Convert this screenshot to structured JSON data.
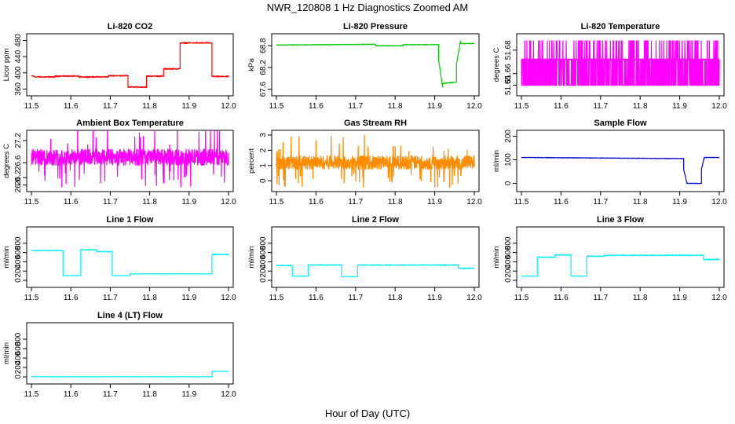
{
  "figure": {
    "title": "NWR_120808  1 Hz Diagnostics Zoomed AM",
    "xlabel": "Hour of Day (UTC)"
  },
  "chart_data": [
    {
      "type": "line",
      "title": "Li-820 CO2",
      "ylabel": "Licor ppm",
      "color": "#ff0000",
      "xlim": [
        11.5,
        12.0
      ],
      "ylim": [
        355,
        485
      ],
      "x_ticks": [
        11.5,
        11.6,
        11.7,
        11.8,
        11.9,
        12.0
      ],
      "y_ticks": [
        360,
        400,
        440,
        480
      ],
      "segments": [
        {
          "x": [
            11.5,
            11.507
          ],
          "y": [
            392,
            392
          ],
          "noise": 2
        },
        {
          "x": [
            11.507,
            11.56
          ],
          "y": [
            390,
            390
          ],
          "noise": 2
        },
        {
          "x": [
            11.56,
            11.62
          ],
          "y": [
            392,
            392
          ],
          "noise": 2
        },
        {
          "x": [
            11.62,
            11.695
          ],
          "y": [
            390,
            390
          ],
          "noise": 2
        },
        {
          "x": [
            11.695,
            11.745
          ],
          "y": [
            393,
            393
          ],
          "noise": 2
        },
        {
          "x": [
            11.745,
            11.792
          ],
          "y": [
            365,
            365
          ],
          "noise": 2
        },
        {
          "x": [
            11.792,
            11.835
          ],
          "y": [
            392,
            392
          ],
          "noise": 2
        },
        {
          "x": [
            11.835,
            11.877
          ],
          "y": [
            410,
            410
          ],
          "noise": 2
        },
        {
          "x": [
            11.877,
            11.958
          ],
          "y": [
            474,
            474
          ],
          "noise": 2
        },
        {
          "x": [
            11.958,
            12.0
          ],
          "y": [
            391,
            391
          ],
          "noise": 2
        }
      ]
    },
    {
      "type": "line",
      "title": "Li-820 Pressure",
      "ylabel": "kPa",
      "color": "#00cc00",
      "xlim": [
        11.5,
        12.0
      ],
      "ylim": [
        67.55,
        69.0
      ],
      "x_ticks": [
        11.5,
        11.6,
        11.7,
        11.8,
        11.9,
        12.0
      ],
      "y_ticks": [
        67.6,
        68.2,
        68.8
      ],
      "segments": [
        {
          "x": [
            11.5,
            11.75
          ],
          "y": [
            68.82,
            68.84
          ],
          "noise": 0.012
        },
        {
          "x": [
            11.75,
            11.82
          ],
          "y": [
            68.8,
            68.8
          ],
          "noise": 0.012
        },
        {
          "x": [
            11.82,
            11.91
          ],
          "y": [
            68.83,
            68.83
          ],
          "noise": 0.012
        },
        {
          "x": [
            11.91,
            11.92
          ],
          "y": [
            68.4,
            67.65
          ],
          "noise": 0.02
        },
        {
          "x": [
            11.92,
            11.955
          ],
          "y": [
            67.76,
            67.8
          ],
          "noise": 0.012
        },
        {
          "x": [
            11.955,
            11.965
          ],
          "y": [
            68.3,
            68.92
          ],
          "noise": 0.02
        },
        {
          "x": [
            11.965,
            12.0
          ],
          "y": [
            68.86,
            68.86
          ],
          "noise": 0.012
        }
      ]
    },
    {
      "type": "line",
      "title": "Li-820 Temperature",
      "ylabel": "degrees C",
      "color": "#ff00ff",
      "xlim": [
        11.5,
        12.0
      ],
      "ylim": [
        51.645,
        51.69
      ],
      "x_ticks": [
        11.5,
        11.6,
        11.7,
        11.8,
        11.9,
        12.0
      ],
      "y_ticks": [
        51.65,
        51.66,
        51.68
      ],
      "levels": [
        51.65,
        51.672,
        51.688
      ],
      "base_level": 51.672
    },
    {
      "type": "line",
      "title": "Ambient Box Temperature",
      "ylabel": "degrees C",
      "color": "#ff00ff",
      "xlim": [
        11.5,
        12.0
      ],
      "ylim": [
        25.95,
        27.35
      ],
      "x_ticks": [
        11.5,
        11.6,
        11.7,
        11.8,
        11.9,
        12.0
      ],
      "y_ticks": [
        26.0,
        26.2,
        26.6,
        27.2
      ],
      "center": 26.75,
      "band": 0.22
    },
    {
      "type": "line",
      "title": "Gas Stream RH",
      "ylabel": "percent",
      "color": "#ff8c00",
      "xlim": [
        11.5,
        12.0
      ],
      "ylim": [
        -0.4,
        3.0
      ],
      "x_ticks": [
        11.5,
        11.6,
        11.7,
        11.8,
        11.9,
        12.0
      ],
      "y_ticks": [
        0,
        1,
        2,
        3
      ],
      "center": 1.2,
      "band": 0.45
    },
    {
      "type": "line",
      "title": "Sample Flow",
      "ylabel": "ml/min",
      "color": "#0000cc",
      "xlim": [
        11.5,
        12.0
      ],
      "ylim": [
        -15,
        205
      ],
      "x_ticks": [
        11.5,
        11.6,
        11.7,
        11.8,
        11.9,
        12.0
      ],
      "y_ticks": [
        0,
        100,
        200
      ],
      "segments": [
        {
          "x": [
            11.5,
            11.91
          ],
          "y": [
            110,
            105
          ],
          "noise": 1.5
        },
        {
          "x": [
            11.91,
            11.918
          ],
          "y": [
            60,
            2
          ],
          "noise": 2
        },
        {
          "x": [
            11.918,
            11.955
          ],
          "y": [
            0,
            0
          ],
          "noise": 1.5
        },
        {
          "x": [
            11.955,
            11.962
          ],
          "y": [
            60,
            110
          ],
          "noise": 2
        },
        {
          "x": [
            11.962,
            12.0
          ],
          "y": [
            110,
            110
          ],
          "noise": 1.5
        }
      ]
    },
    {
      "type": "line",
      "title": "Line 1 Flow",
      "ylabel": "ml/min",
      "color": "#00eeff",
      "xlim": [
        11.5,
        12.0
      ],
      "ylim": [
        -50,
        1050
      ],
      "x_ticks": [
        11.5,
        11.6,
        11.7,
        11.8,
        11.9,
        12.0
      ],
      "y_ticks": [
        0,
        200,
        400,
        600,
        800
      ],
      "segments": [
        {
          "x": [
            11.5,
            11.58
          ],
          "y": [
            640,
            640
          ],
          "noise": 12
        },
        {
          "x": [
            11.58,
            11.625
          ],
          "y": [
            100,
            100
          ],
          "noise": 4
        },
        {
          "x": [
            11.625,
            11.665
          ],
          "y": [
            660,
            660
          ],
          "noise": 12
        },
        {
          "x": [
            11.665,
            11.705
          ],
          "y": [
            620,
            620
          ],
          "noise": 12
        },
        {
          "x": [
            11.705,
            11.75
          ],
          "y": [
            100,
            100
          ],
          "noise": 4
        },
        {
          "x": [
            11.75,
            11.958
          ],
          "y": [
            140,
            140
          ],
          "noise": 5
        },
        {
          "x": [
            11.958,
            12.0
          ],
          "y": [
            560,
            560
          ],
          "noise": 14
        }
      ]
    },
    {
      "type": "line",
      "title": "Line 2 Flow",
      "ylabel": "ml/min",
      "color": "#00eeff",
      "xlim": [
        11.5,
        12.0
      ],
      "ylim": [
        -50,
        1050
      ],
      "x_ticks": [
        11.5,
        11.6,
        11.7,
        11.8,
        11.9,
        12.0
      ],
      "y_ticks": [
        0,
        200,
        400,
        600,
        800
      ],
      "segments": [
        {
          "x": [
            11.5,
            11.54
          ],
          "y": [
            320,
            320
          ],
          "noise": 14
        },
        {
          "x": [
            11.54,
            11.58
          ],
          "y": [
            90,
            90
          ],
          "noise": 5
        },
        {
          "x": [
            11.58,
            11.665
          ],
          "y": [
            330,
            330
          ],
          "noise": 14
        },
        {
          "x": [
            11.665,
            11.705
          ],
          "y": [
            80,
            80
          ],
          "noise": 5
        },
        {
          "x": [
            11.705,
            11.96
          ],
          "y": [
            330,
            330
          ],
          "noise": 14
        },
        {
          "x": [
            11.96,
            12.0
          ],
          "y": [
            260,
            260
          ],
          "noise": 14
        }
      ]
    },
    {
      "type": "line",
      "title": "Line 3 Flow",
      "ylabel": "ml/min",
      "color": "#00eeff",
      "xlim": [
        11.5,
        12.0
      ],
      "ylim": [
        -50,
        1050
      ],
      "x_ticks": [
        11.5,
        11.6,
        11.7,
        11.8,
        11.9,
        12.0
      ],
      "y_ticks": [
        0,
        200,
        400,
        600,
        800
      ],
      "segments": [
        {
          "x": [
            11.5,
            11.54
          ],
          "y": [
            90,
            90
          ],
          "noise": 5
        },
        {
          "x": [
            11.54,
            11.585
          ],
          "y": [
            500,
            500
          ],
          "noise": 14
        },
        {
          "x": [
            11.585,
            11.625
          ],
          "y": [
            550,
            550
          ],
          "noise": 14
        },
        {
          "x": [
            11.625,
            11.665
          ],
          "y": [
            90,
            90
          ],
          "noise": 5
        },
        {
          "x": [
            11.665,
            11.71
          ],
          "y": [
            520,
            520
          ],
          "noise": 14
        },
        {
          "x": [
            11.71,
            11.96
          ],
          "y": [
            540,
            540
          ],
          "noise": 14
        },
        {
          "x": [
            11.96,
            12.0
          ],
          "y": [
            450,
            450
          ],
          "noise": 14
        }
      ]
    },
    {
      "type": "line",
      "title": "Line 4 (LT) Flow",
      "ylabel": "ml/min",
      "color": "#00eeff",
      "xlim": [
        11.5,
        12.0
      ],
      "ylim": [
        -50,
        1050
      ],
      "x_ticks": [
        11.5,
        11.6,
        11.7,
        11.8,
        11.9,
        12.0
      ],
      "y_ticks": [
        0,
        200,
        400,
        600,
        800
      ],
      "segments": [
        {
          "x": [
            11.5,
            11.958
          ],
          "y": [
            2,
            2
          ],
          "noise": 2
        },
        {
          "x": [
            11.958,
            12.0
          ],
          "y": [
            120,
            120
          ],
          "noise": 6
        }
      ]
    }
  ]
}
